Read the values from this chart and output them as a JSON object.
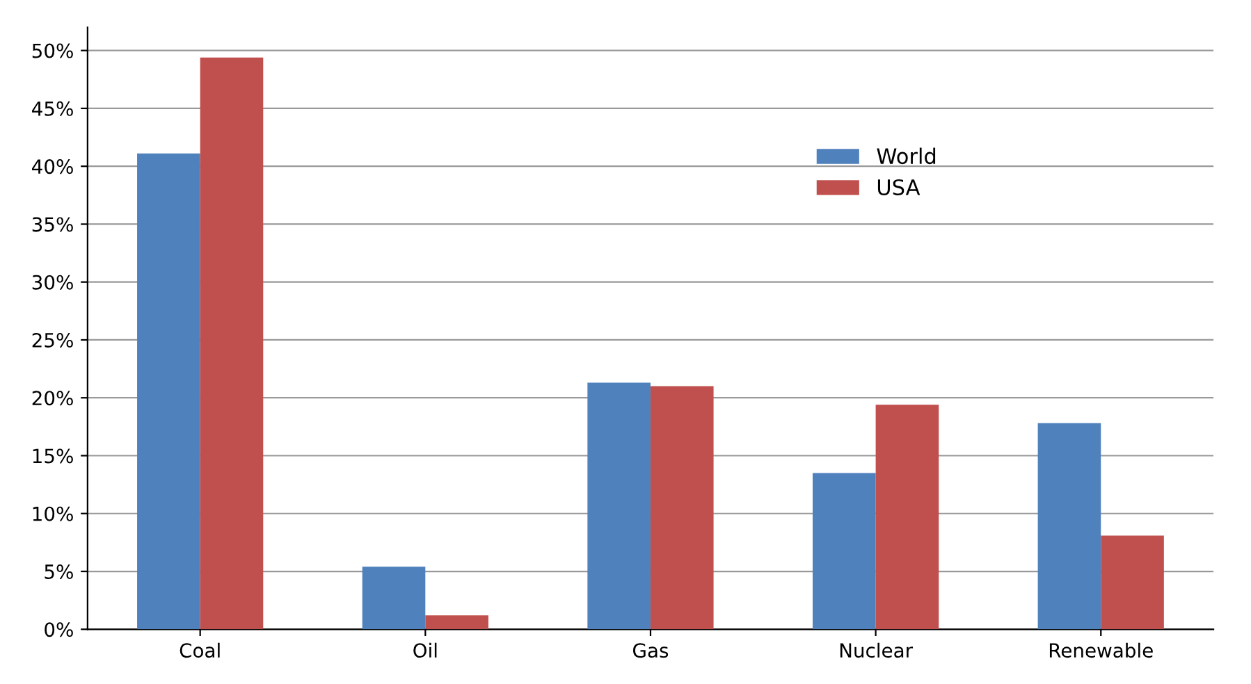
{
  "chart_data": {
    "type": "bar",
    "categories": [
      "Coal",
      "Oil",
      "Gas",
      "Nuclear",
      "Renewable"
    ],
    "series": [
      {
        "name": "World",
        "color": "#4f81bd",
        "values": [
          41.1,
          5.4,
          21.3,
          13.5,
          17.8
        ]
      },
      {
        "name": "USA",
        "color": "#c0504d",
        "values": [
          49.4,
          1.2,
          21.0,
          19.4,
          8.1
        ]
      }
    ],
    "ylim": [
      0,
      52
    ],
    "yticks": [
      {
        "value": 0,
        "label": "0%"
      },
      {
        "value": 5,
        "label": "5%"
      },
      {
        "value": 10,
        "label": "10%"
      },
      {
        "value": 15,
        "label": "15%"
      },
      {
        "value": 20,
        "label": "20%"
      },
      {
        "value": 25,
        "label": "25%"
      },
      {
        "value": 30,
        "label": "30%"
      },
      {
        "value": 35,
        "label": "35%"
      },
      {
        "value": 40,
        "label": "40%"
      },
      {
        "value": 45,
        "label": "45%"
      },
      {
        "value": 50,
        "label": "50%"
      }
    ],
    "grid": "y",
    "legend": "top right"
  }
}
